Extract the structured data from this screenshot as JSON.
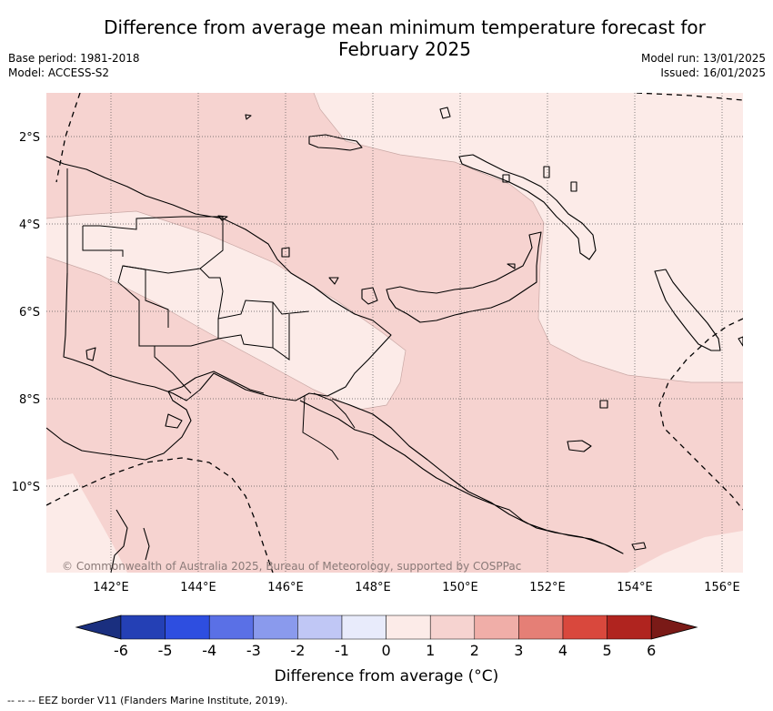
{
  "title_line1": "Difference from average mean minimum temperature forecast for",
  "title_line2": "February 2025",
  "base_period": "Base period: 1981-2018",
  "model": "Model: ACCESS-S2",
  "model_run": "Model run: 13/01/2025",
  "issued": "Issued: 16/01/2025",
  "copyright": "© Commonwealth of Australia 2025, Bureau of Meteorology, supported by COSPPac",
  "lon_labels": [
    "142°E",
    "144°E",
    "146°E",
    "148°E",
    "150°E",
    "152°E",
    "154°E",
    "156°E"
  ],
  "lat_labels": [
    "2°S",
    "4°S",
    "6°S",
    "8°S",
    "10°S"
  ],
  "colorbar": {
    "ticks": [
      "-6",
      "-5",
      "-4",
      "-3",
      "-2",
      "-1",
      "0",
      "1",
      "2",
      "3",
      "4",
      "5",
      "6"
    ],
    "label": "Difference from average (°C)",
    "colors": [
      "#1a2f7f",
      "#2440b5",
      "#2e4ee0",
      "#5a70e6",
      "#8a9aed",
      "#c0c7f5",
      "#e8ebfb",
      "#fcebe8",
      "#f6d3d0",
      "#f0aea8",
      "#e57f76",
      "#d9483d",
      "#b0241f",
      "#7a1a17"
    ]
  },
  "legend_note": "--  --  -- EEZ border V11 (Flanders Marine Institute, 2019).",
  "colors": {
    "band_1_2": "#f6d3d0",
    "band_0_1": "#fcebe8"
  }
}
